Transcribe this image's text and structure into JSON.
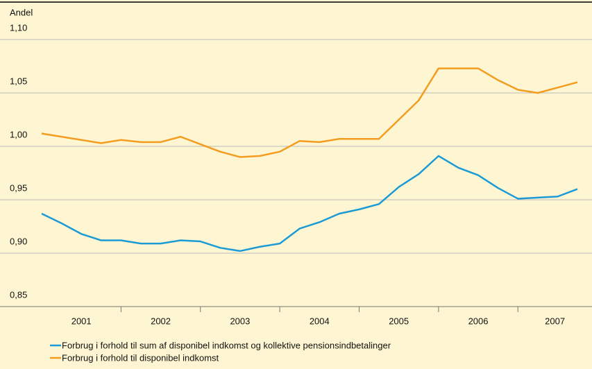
{
  "chart_data": {
    "type": "line",
    "y_label": "Andel",
    "categories": [
      "2001",
      null,
      null,
      null,
      "2002",
      null,
      null,
      null,
      "2003",
      null,
      null,
      null,
      "2004",
      null,
      null,
      null,
      "2005",
      null,
      null,
      null,
      "2006",
      null,
      null,
      null,
      "2007",
      null,
      null,
      null
    ],
    "series": [
      {
        "name": "Forbrug i forhold til sum af disponibel indkomst og kollektive pensionsindbetalinger",
        "color": "#1b9ad6",
        "values": [
          0.937,
          0.928,
          0.918,
          0.912,
          0.912,
          0.909,
          0.909,
          0.912,
          0.911,
          0.905,
          0.902,
          0.906,
          0.909,
          0.923,
          0.929,
          0.937,
          0.941,
          0.946,
          0.962,
          0.974,
          0.991,
          0.98,
          0.973,
          0.961,
          0.951,
          0.952,
          0.953,
          0.96
        ]
      },
      {
        "name": "Forbrug i forhold til disponibel indkomst",
        "color": "#f39c1f",
        "values": [
          1.012,
          1.009,
          1.006,
          1.003,
          1.006,
          1.004,
          1.004,
          1.009,
          1.002,
          0.995,
          0.99,
          0.991,
          0.995,
          1.005,
          1.004,
          1.007,
          1.007,
          1.007,
          1.025,
          1.043,
          1.073,
          1.073,
          1.073,
          1.062,
          1.053,
          1.05,
          1.055,
          1.06
        ]
      }
    ],
    "ylim": [
      0.85,
      1.1
    ],
    "yticks": [
      {
        "value": 0.85,
        "label": "0,85"
      },
      {
        "value": 0.9,
        "label": "0,90"
      },
      {
        "value": 0.95,
        "label": "0,95"
      },
      {
        "value": 1.0,
        "label": "1,00"
      },
      {
        "value": 1.05,
        "label": "1,05"
      },
      {
        "value": 1.1,
        "label": "1,10"
      }
    ],
    "grid": true
  }
}
